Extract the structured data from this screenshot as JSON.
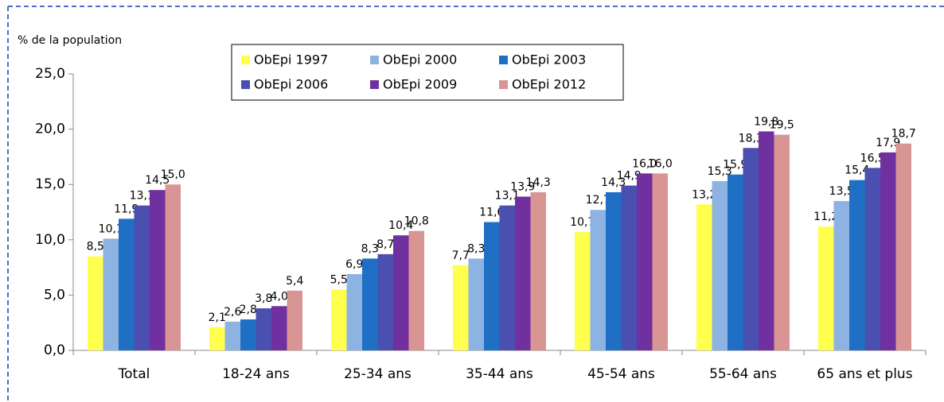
{
  "chart_data": {
    "type": "bar",
    "y_axis_label": "% de la population",
    "categories": [
      "Total",
      "18-24 ans",
      "25-34 ans",
      "35-44 ans",
      "45-54 ans",
      "55-64 ans",
      "65 ans et plus"
    ],
    "series": [
      {
        "name": "ObEpi 1997",
        "color": "#ffff4d",
        "values": [
          8.5,
          2.1,
          5.5,
          7.7,
          10.7,
          13.2,
          11.2
        ],
        "value_labels": [
          "8,5",
          "2,1",
          "5,5",
          "7,7",
          "10,7",
          "13,2",
          "11,2"
        ]
      },
      {
        "name": "ObEpi 2000",
        "color": "#8db3e2",
        "values": [
          10.1,
          2.6,
          6.9,
          8.3,
          12.7,
          15.3,
          13.5
        ],
        "value_labels": [
          "10,1",
          "2,6",
          "6,9",
          "8,3",
          "12,7",
          "15,3",
          "13,5"
        ]
      },
      {
        "name": "ObEpi 2003",
        "color": "#1f6fc5",
        "values": [
          11.9,
          2.8,
          8.3,
          11.6,
          14.3,
          15.9,
          15.4
        ],
        "value_labels": [
          "11,9",
          "2,8",
          "8,3",
          "11,6",
          "14,3",
          "15,9",
          "15,4"
        ]
      },
      {
        "name": "ObEpi 2006",
        "color": "#4a4fb0",
        "values": [
          13.1,
          3.8,
          8.7,
          13.1,
          14.9,
          18.3,
          16.5
        ],
        "value_labels": [
          "13,1",
          "3,8",
          "8,7",
          "13,1",
          "14,9",
          "18,3",
          "16,5"
        ]
      },
      {
        "name": "ObEpi 2009",
        "color": "#7030a0",
        "values": [
          14.5,
          4.0,
          10.4,
          13.9,
          16.0,
          19.8,
          17.9
        ],
        "value_labels": [
          "14,5",
          "4,0",
          "10,4",
          "13,9",
          "16,0",
          "19,8",
          "17,9"
        ]
      },
      {
        "name": "ObEpi 2012",
        "color": "#d99594",
        "values": [
          15.0,
          5.4,
          10.8,
          14.3,
          16.0,
          19.5,
          18.7
        ],
        "value_labels": [
          "15,0",
          "5,4",
          "10,8",
          "14,3",
          "16,0",
          "19,5",
          "18,7"
        ]
      }
    ],
    "ylim": [
      0,
      25
    ],
    "yticks": [
      {
        "value": 0,
        "label": "0,0"
      },
      {
        "value": 5,
        "label": "5,0"
      },
      {
        "value": 10,
        "label": "10,0"
      },
      {
        "value": 15,
        "label": "15,0"
      },
      {
        "value": 20,
        "label": "20,0"
      },
      {
        "value": 25,
        "label": "25,0"
      }
    ],
    "grid": false,
    "legend": "top"
  }
}
